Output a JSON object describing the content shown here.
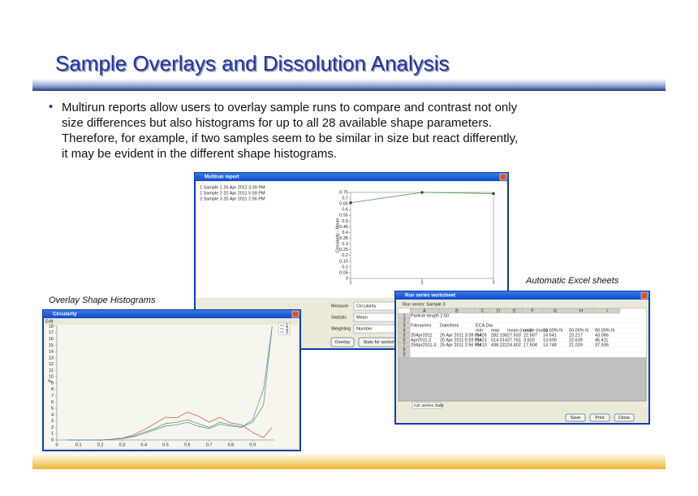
{
  "header": {
    "title": "Sample Overlays and Dissolution Analysis"
  },
  "bullet": [
    "Multirun reports allow users to overlay sample runs to compare and contrast not only",
    "size differences but also histograms for up to all 28 available shape parameters.",
    "Therefore, for example, if two samples seem to be similar in size but react differently,",
    "it may be evident in the different shape histograms."
  ],
  "captions": {
    "left": "Overlay Shape Histograms",
    "right": "Automatic Excel sheets"
  },
  "multirun": {
    "title": "Multirun report",
    "samples": [
      "1  Sample 1  26 Apr 2011  3:39 PM",
      "2  Sample 2  20 Apr 2011  5:59 PM",
      "3  Sample 3  25 Apr 2011  2:56 PM"
    ],
    "y_label": "Circularity - Mean",
    "ylim": [
      0,
      0.75
    ],
    "yticks": [
      0,
      0.05,
      0.1,
      0.15,
      0.2,
      0.25,
      0.3,
      0.35,
      0.4,
      0.45,
      0.5,
      0.55,
      0.6,
      0.65,
      0.7,
      0.75
    ],
    "xticks": [
      1,
      2,
      3
    ],
    "values": [
      0.66,
      0.75,
      0.74
    ],
    "fields": [
      {
        "label": "Measure",
        "value": "Circularity"
      },
      {
        "label": "Statistic",
        "value": "Mean"
      },
      {
        "label": "Weighting",
        "value": "Number"
      }
    ],
    "buttons": [
      "Overlay",
      "Stats for worksheet"
    ]
  },
  "histogram": {
    "title": "Circularity",
    "menu": "Edit",
    "xlim": [
      0,
      1
    ],
    "ylim": [
      0,
      18
    ],
    "xticks": [
      0,
      0.1,
      0.2,
      0.3,
      0.4,
      0.5,
      0.6,
      0.7,
      0.8,
      0.9
    ],
    "yticks": [
      0,
      1,
      2,
      3,
      4,
      5,
      6,
      7,
      8,
      9,
      10,
      11,
      12,
      13,
      14,
      15,
      16,
      17,
      18
    ],
    "y_label": "%",
    "x": [
      0.05,
      0.1,
      0.15,
      0.2,
      0.25,
      0.3,
      0.35,
      0.4,
      0.45,
      0.5,
      0.55,
      0.6,
      0.65,
      0.7,
      0.75,
      0.8,
      0.85,
      0.9,
      0.95,
      0.99
    ],
    "series": [
      {
        "name": "1",
        "color": "#c0504d",
        "values": [
          0,
          0,
          0,
          0,
          0.1,
          0.3,
          0.8,
          1.6,
          2.6,
          3.6,
          3.5,
          4.4,
          3.8,
          2.8,
          3.6,
          2.7,
          2.4,
          1.2,
          0.4,
          2
        ]
      },
      {
        "name": "2",
        "color": "#4a9a4a",
        "values": [
          0,
          0,
          0,
          0,
          0.1,
          0.3,
          0.6,
          1.2,
          1.8,
          2.6,
          2.8,
          3.2,
          2.6,
          2,
          2.8,
          2.4,
          2.1,
          2.8,
          5.5,
          18
        ]
      },
      {
        "name": "3",
        "color": "#4f81bd",
        "values": [
          0,
          0,
          0,
          0,
          0.1,
          0.2,
          0.5,
          1,
          1.6,
          2.2,
          2.4,
          2.8,
          2.2,
          1.8,
          2.5,
          2.2,
          2,
          3.2,
          8,
          18
        ]
      }
    ]
  },
  "excel": {
    "title": "Run series worksheet",
    "run_series": "Run series:  Sample 3",
    "columns": [
      "A",
      "B",
      "C",
      "D",
      "E",
      "F",
      "G",
      "H",
      "I"
    ],
    "row_numbers": [
      1,
      2,
      3,
      4,
      5,
      6,
      7,
      8,
      9
    ],
    "rows": [
      [
        "Particle length 2.50",
        null,
        null,
        null,
        null,
        null,
        null,
        null,
        null
      ],
      [
        null,
        null,
        null,
        null,
        null,
        null,
        null,
        null,
        null
      ],
      [
        "Filenames",
        "Date/time",
        "ECA Dia",
        null,
        null,
        null,
        null,
        null,
        null
      ],
      [
        null,
        null,
        "min",
        "max",
        "mean (num)",
        "mode (num)",
        "10.00% N",
        "50.00% N",
        "90.00% N"
      ],
      [
        "20Apr2011",
        "26 Apr 2011  3:39 PM",
        "3.426",
        "282.138",
        "27.933",
        "22.667",
        "14.641",
        "23.217",
        "43.066"
      ],
      [
        "Apr2011-2",
        "20 Apr 2011  5:59 PM",
        "3.421",
        "514.014",
        "27.761",
        "3.620",
        "13.609",
        "22.639",
        "45.411"
      ],
      [
        "29Apr2011-3",
        "25 Apr 2011  2:56 PM",
        "3.410",
        "438.222",
        "24.402",
        "17.504",
        "13.748",
        "21.029",
        "37.936"
      ]
    ],
    "tab": "run series data",
    "buttons": [
      "Save",
      "Print",
      "Close"
    ]
  }
}
